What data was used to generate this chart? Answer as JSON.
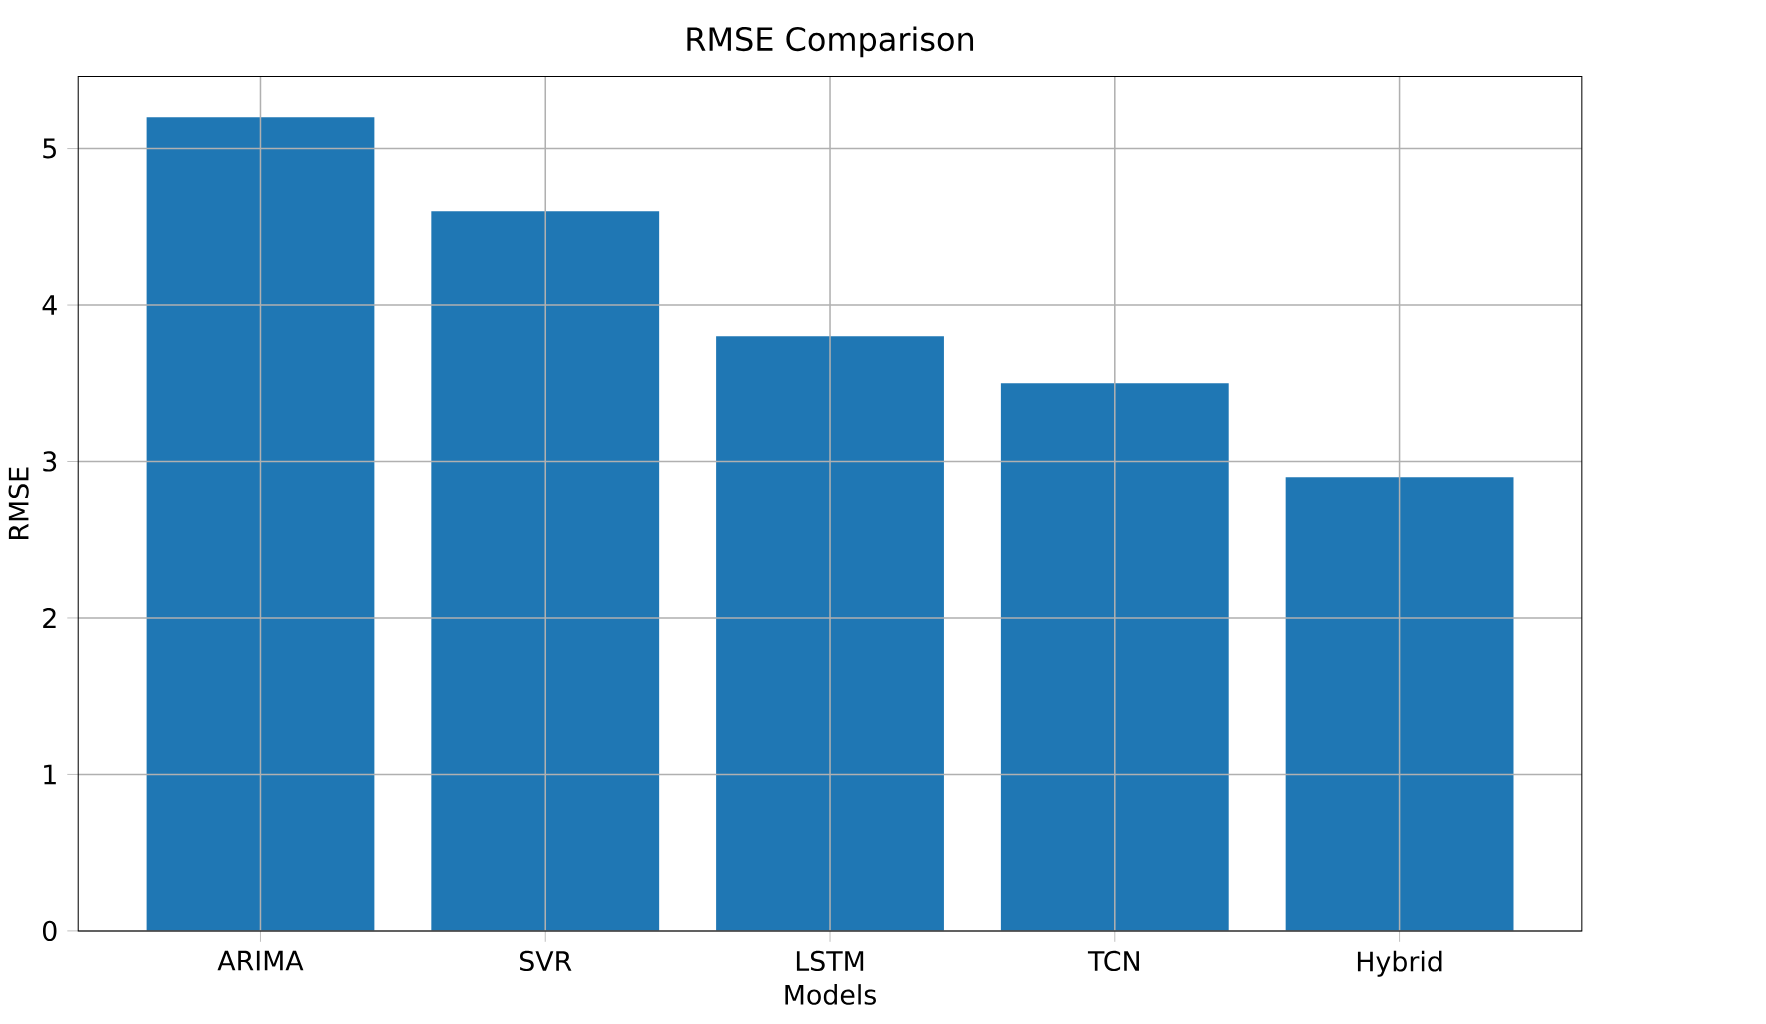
{
  "chart_data": {
    "type": "bar",
    "title": "RMSE Comparison",
    "xlabel": "Models",
    "ylabel": "RMSE",
    "categories": [
      "ARIMA",
      "SVR",
      "LSTM",
      "TCN",
      "Hybrid"
    ],
    "values": [
      5.2,
      4.6,
      3.8,
      3.5,
      2.9
    ],
    "color": "#1f77b4",
    "ylim": [
      0,
      5.46
    ],
    "yticks": [
      0,
      1,
      2,
      3,
      4,
      5
    ],
    "grid": true
  }
}
